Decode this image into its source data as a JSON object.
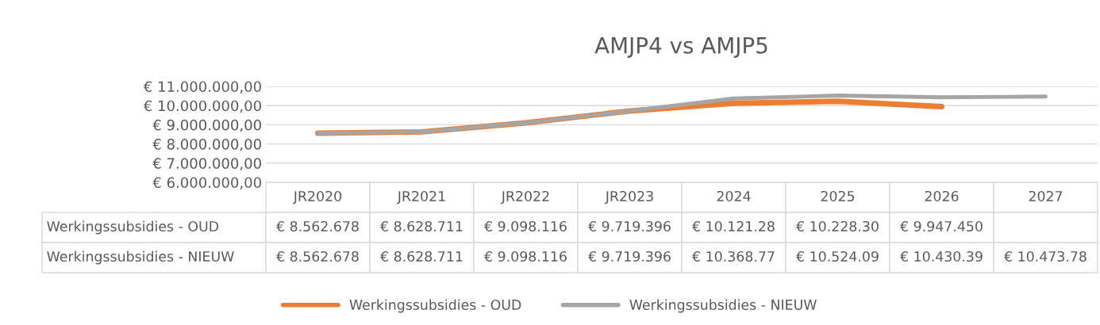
{
  "chart_data": {
    "type": "line",
    "title": "AMJP4 vs AMJP5",
    "categories": [
      "JR2020",
      "JR2021",
      "JR2022",
      "JR2023",
      "2024",
      "2025",
      "2026",
      "2027"
    ],
    "series": [
      {
        "name": "Werkingssubsidies - OUD",
        "color": "#ed7d31",
        "values": [
          8562678,
          8628711,
          9098116,
          9719396,
          10121280,
          10228300,
          9947450,
          null
        ],
        "value_labels": [
          "€ 8.562.678",
          "€ 8.628.711",
          "€ 9.098.116",
          "€ 9.719.396",
          "€ 10.121.28",
          "€ 10.228.30",
          "€ 9.947.450",
          null
        ]
      },
      {
        "name": "Werkingssubsidies - NIEUW",
        "color": "#a5a5a5",
        "values": [
          8562678,
          8628711,
          9098116,
          9719396,
          10368770,
          10524090,
          10430390,
          10473780
        ],
        "value_labels": [
          "€ 8.562.678",
          "€ 8.628.711",
          "€ 9.098.116",
          "€ 9.719.396",
          "€ 10.368.77",
          "€ 10.524.09",
          "€ 10.430.39",
          "€ 10.473.78"
        ]
      }
    ],
    "ylim": [
      6000000,
      11000000
    ],
    "yticks": [
      {
        "value": 6000000,
        "label": "€ 6.000.000,00"
      },
      {
        "value": 7000000,
        "label": "€ 7.000.000,00"
      },
      {
        "value": 8000000,
        "label": "€ 8.000.000,00"
      },
      {
        "value": 9000000,
        "label": "€ 9.000.000,00"
      },
      {
        "value": 10000000,
        "label": "€ 10.000.000,00"
      },
      {
        "value": 11000000,
        "label": "€ 11.000.000,00"
      }
    ],
    "grid": "y",
    "legend": "bottom"
  }
}
